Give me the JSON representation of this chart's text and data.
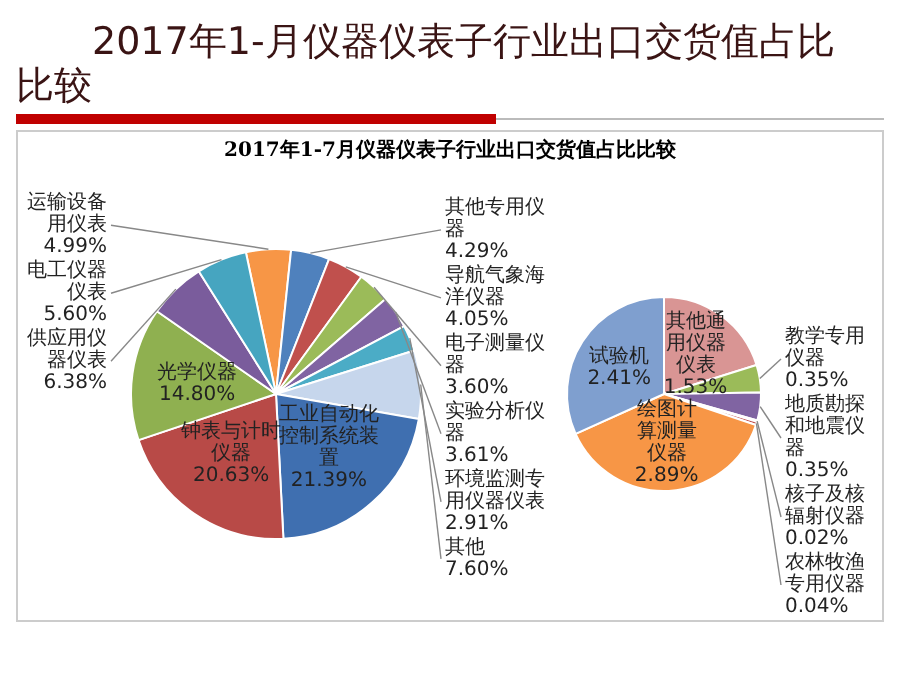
{
  "chart_data": [
    {
      "type": "pie",
      "title": "2017年1-月仪器仪表子行业出口交货值占比比较",
      "subtitle": "2017年1-7月仪器仪表子行业出口交货值占比比较",
      "categories": [
        "运输设备用仪表",
        "其他专用仪器",
        "导航气象海洋仪器",
        "电子测量仪器",
        "实验分析仪器",
        "环境监测专用仪器仪表",
        "其他",
        "工业自动化控制系统装置",
        "钟表与计时仪器",
        "光学仪器",
        "供应用仪器仪表",
        "电工仪器仪表"
      ],
      "values": [
        4.99,
        4.29,
        4.05,
        3.6,
        3.61,
        2.91,
        7.6,
        21.39,
        20.63,
        14.8,
        6.38,
        5.6
      ],
      "value_labels": [
        "4.99%",
        "4.29%",
        "4.05%",
        "3.60%",
        "3.61%",
        "2.91%",
        "7.60%",
        "21.39%",
        "20.63%",
        "14.80%",
        "6.38%",
        "5.60%"
      ],
      "colors": [
        "#f79646",
        "#4f81bd",
        "#c0504d",
        "#9bbb59",
        "#8064a2",
        "#4bacc6",
        "#c6d6ec",
        "#3f6fb0",
        "#b84a47",
        "#8fb050",
        "#7a5c9c",
        "#46a5c0"
      ],
      "legend": false
    },
    {
      "type": "pie",
      "categories": [
        "其他通用仪器仪表",
        "教学专用仪器",
        "地质勘探和地震仪器",
        "核子及核辐射仪器",
        "农林牧渔专用仪器",
        "绘图计算测量仪器",
        "试验机"
      ],
      "values": [
        1.53,
        0.35,
        0.35,
        0.02,
        0.04,
        2.89,
        2.41
      ],
      "value_labels": [
        "1.53%",
        "0.35%",
        "0.35%",
        "0.02%",
        "0.04%",
        "2.89%",
        "2.41%"
      ],
      "colors": [
        "#d99594",
        "#9bbb59",
        "#8064a2",
        "#4bacc6",
        "#c0504d",
        "#f79646",
        "#7f9fcf"
      ],
      "legend": false
    }
  ]
}
